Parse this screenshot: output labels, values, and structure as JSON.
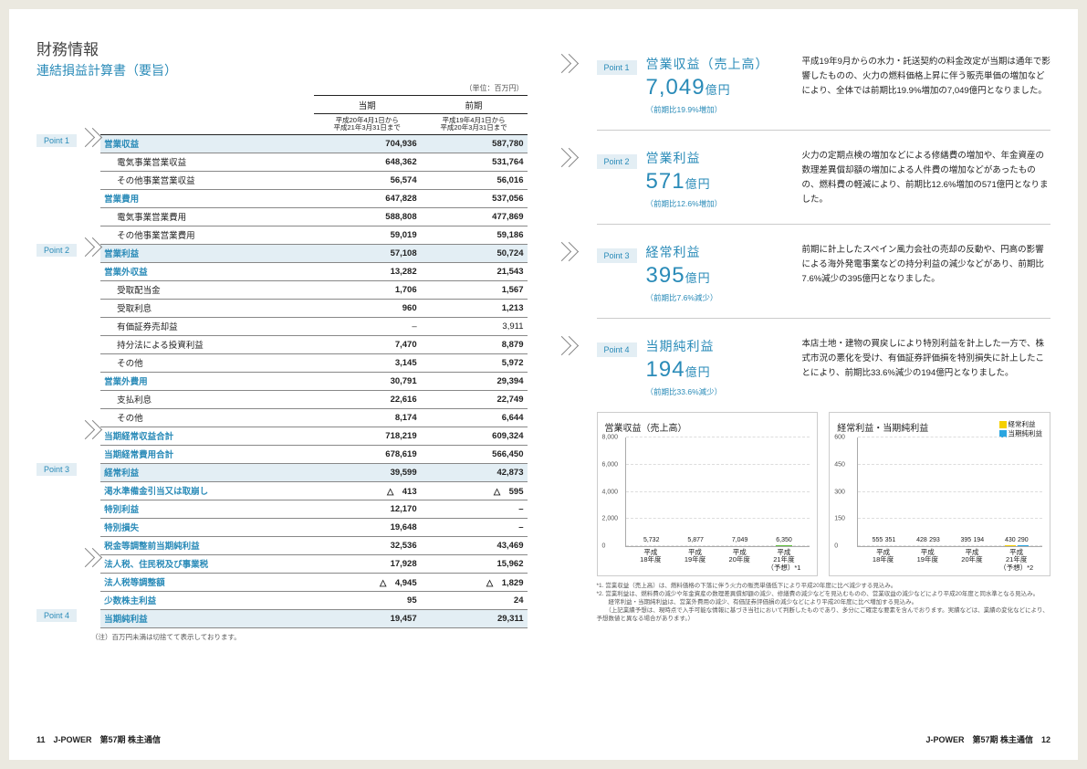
{
  "page": {
    "title": "財務情報",
    "subtitle": "連結損益計算書（要旨）",
    "unit": "（単位：百万円）"
  },
  "tableHeader": {
    "col1_top": "当期",
    "col1_sub": "平成20年4月1日から\n平成21年3月31日まで",
    "col2_top": "前期",
    "col2_sub": "平成19年4月1日から\n平成20年3月31日まで"
  },
  "rows": [
    {
      "point": "Point 1",
      "label": "営業収益",
      "v1": "704,936",
      "v2": "587,780",
      "blue": true,
      "bold": true,
      "hl": true,
      "arrow": true
    },
    {
      "label": "電気事業営業収益",
      "v1": "648,362",
      "v2": "531,764",
      "indent": 1,
      "bold": true
    },
    {
      "label": "その他事業営業収益",
      "v1": "56,574",
      "v2": "56,016",
      "indent": 1,
      "bold": true
    },
    {
      "label": "営業費用",
      "v1": "647,828",
      "v2": "537,056",
      "blue": true,
      "bold": true
    },
    {
      "label": "電気事業営業費用",
      "v1": "588,808",
      "v2": "477,869",
      "indent": 1,
      "bold": true
    },
    {
      "label": "その他事業営業費用",
      "v1": "59,019",
      "v2": "59,186",
      "indent": 1,
      "bold": true
    },
    {
      "point": "Point 2",
      "label": "営業利益",
      "v1": "57,108",
      "v2": "50,724",
      "blue": true,
      "bold": true,
      "hl": true,
      "arrow": true
    },
    {
      "label": "営業外収益",
      "v1": "13,282",
      "v2": "21,543",
      "blue": true,
      "bold": true
    },
    {
      "label": "受取配当金",
      "v1": "1,706",
      "v2": "1,567",
      "indent": 1,
      "bold": true
    },
    {
      "label": "受取利息",
      "v1": "960",
      "v2": "1,213",
      "indent": 1,
      "bold": true
    },
    {
      "label": "有価証券売却益",
      "v1": "–",
      "v2": "3,911",
      "indent": 1
    },
    {
      "label": "持分法による投資利益",
      "v1": "7,470",
      "v2": "8,879",
      "indent": 1,
      "bold": true
    },
    {
      "label": "その他",
      "v1": "3,145",
      "v2": "5,972",
      "indent": 1,
      "bold": true
    },
    {
      "label": "営業外費用",
      "v1": "30,791",
      "v2": "29,394",
      "blue": true,
      "bold": true
    },
    {
      "label": "支払利息",
      "v1": "22,616",
      "v2": "22,749",
      "indent": 1,
      "bold": true
    },
    {
      "label": "その他",
      "v1": "8,174",
      "v2": "6,644",
      "indent": 1,
      "bold": true
    },
    {
      "label": "当期経常収益合計",
      "v1": "718,219",
      "v2": "609,324",
      "blue": true,
      "bold": true,
      "arrow": true
    },
    {
      "label": "当期経常費用合計",
      "v1": "678,619",
      "v2": "566,450",
      "blue": true,
      "bold": true
    },
    {
      "point": "Point 3",
      "label": "経常利益",
      "v1": "39,599",
      "v2": "42,873",
      "blue": true,
      "bold": true,
      "hl": true
    },
    {
      "label": "渇水準備金引当又は取崩し",
      "v1": "△　413",
      "v2": "△　595",
      "blue": true,
      "bold": true
    },
    {
      "label": "特別利益",
      "v1": "12,170",
      "v2": "–",
      "blue": true,
      "bold": true
    },
    {
      "label": "特別損失",
      "v1": "19,648",
      "v2": "–",
      "blue": true,
      "bold": true
    },
    {
      "label": "税金等調整前当期純利益",
      "v1": "32,536",
      "v2": "43,469",
      "blue": true,
      "bold": true
    },
    {
      "label": "法人税、住民税及び事業税",
      "v1": "17,928",
      "v2": "15,962",
      "blue": true,
      "bold": true,
      "arrow": true
    },
    {
      "label": "法人税等調整額",
      "v1": "△　4,945",
      "v2": "△　1,829",
      "blue": true,
      "bold": true
    },
    {
      "label": "少数株主利益",
      "v1": "95",
      "v2": "24",
      "blue": true,
      "bold": true
    },
    {
      "point": "Point 4",
      "label": "当期純利益",
      "v1": "19,457",
      "v2": "29,311",
      "blue": true,
      "bold": true,
      "hl": true
    }
  ],
  "tableNote": "（注）百万円未満は切捨てて表示しております。",
  "points": [
    {
      "tag": "Point 1",
      "title": "営業収益（売上高）",
      "val": "7,049",
      "unit": "億円",
      "sub": "（前期比19.9%増加）",
      "desc": "平成19年9月からの水力・託送契約の料金改定が当期は通年で影響したものの、火力の燃料価格上昇に伴う販売単価の増加などにより、全体では前期比19.9%増加の7,049億円となりました。"
    },
    {
      "tag": "Point 2",
      "title": "営業利益",
      "val": "571",
      "unit": "億円",
      "sub": "（前期比12.6%増加）",
      "desc": "火力の定期点検の増加などによる修繕費の増加や、年金資産の数理差異償却額の増加による人件費の増加などがあったものの、燃料費の軽減により、前期比12.6%増加の571億円となりました。"
    },
    {
      "tag": "Point 3",
      "title": "経常利益",
      "val": "395",
      "unit": "億円",
      "sub": "（前期比7.6%減少）",
      "desc": "前期に計上したスペイン風力会社の売却の反動や、円高の影響による海外発電事業などの持分利益の減少などがあり、前期比7.6%減少の395億円となりました。"
    },
    {
      "tag": "Point 4",
      "title": "当期純利益",
      "val": "194",
      "unit": "億円",
      "sub": "（前期比33.6%減少）",
      "desc": "本店土地・建物の買戻しにより特別利益を計上した一方で、株式市況の悪化を受け、有価証券評価損を特別損失に計上したことにより、前期比33.6%減少の194億円となりました。"
    }
  ],
  "chart1": {
    "title": "営業収益（売上高）",
    "ymax": 8000,
    "yticks": [
      0,
      2000,
      4000,
      6000,
      8000
    ],
    "categories": [
      "平成\n18年度",
      "平成\n19年度",
      "平成\n20年度",
      "平成\n21年度\n（予想）*1"
    ],
    "bars": [
      {
        "v": 5732,
        "fill": "#5fbf3c"
      },
      {
        "v": 5877,
        "fill": "#5fbf3c"
      },
      {
        "v": 7049,
        "fill": "#5fbf3c"
      },
      {
        "v": 6350,
        "fill": "#ffffff",
        "stroke": "#5fbf3c"
      }
    ]
  },
  "chart2": {
    "title": "経常利益・当期純利益",
    "legend": [
      {
        "label": "経常利益",
        "color": "#f5d000"
      },
      {
        "label": "当期純利益",
        "color": "#2aa5e0"
      }
    ],
    "ymax": 600,
    "yticks": [
      0,
      150,
      300,
      450,
      600
    ],
    "categories": [
      "平成\n18年度",
      "平成\n19年度",
      "平成\n20年度",
      "平成\n21年度\n（予想）*2"
    ],
    "groups": [
      [
        {
          "v": 555,
          "fill": "#f5d000"
        },
        {
          "v": 351,
          "fill": "#2aa5e0"
        }
      ],
      [
        {
          "v": 428,
          "fill": "#f5d000"
        },
        {
          "v": 293,
          "fill": "#2aa5e0"
        }
      ],
      [
        {
          "v": 395,
          "fill": "#f5d000"
        },
        {
          "v": 194,
          "fill": "#2aa5e0"
        }
      ],
      [
        {
          "v": 430,
          "fill": "#ffffff",
          "stroke": "#f5d000"
        },
        {
          "v": 290,
          "fill": "#ffffff",
          "stroke": "#2aa5e0"
        }
      ]
    ]
  },
  "finePrint": "*1. 営業収益（売上高）は、燃料価格の下落に伴う火力の販売単価低下により平成20年度に比べ減少する見込み。\n*2. 営業利益は、燃料費の減少や年金資産の数理差異償却額の減少、修繕費の減少などを見込むものの、営業収益の減少などにより平成20年度と同水準となる見込み。\n　　経常利益・当期純利益は、営業外費用の減少、有価証券評価損の減少などにより平成20年度に比べ増加する見込み。\n　　（上記業績予想は、現時点で入手可能な情報に基づき当社において判断したものであり、多分にご確定な要素を含んでおります。実績などは、業績の変化などにより、予想数値と異なる場合があります。）",
  "footerLeft": "11　J-POWER　第57期 株主通信",
  "footerRight": "J-POWER　第57期 株主通信　12"
}
